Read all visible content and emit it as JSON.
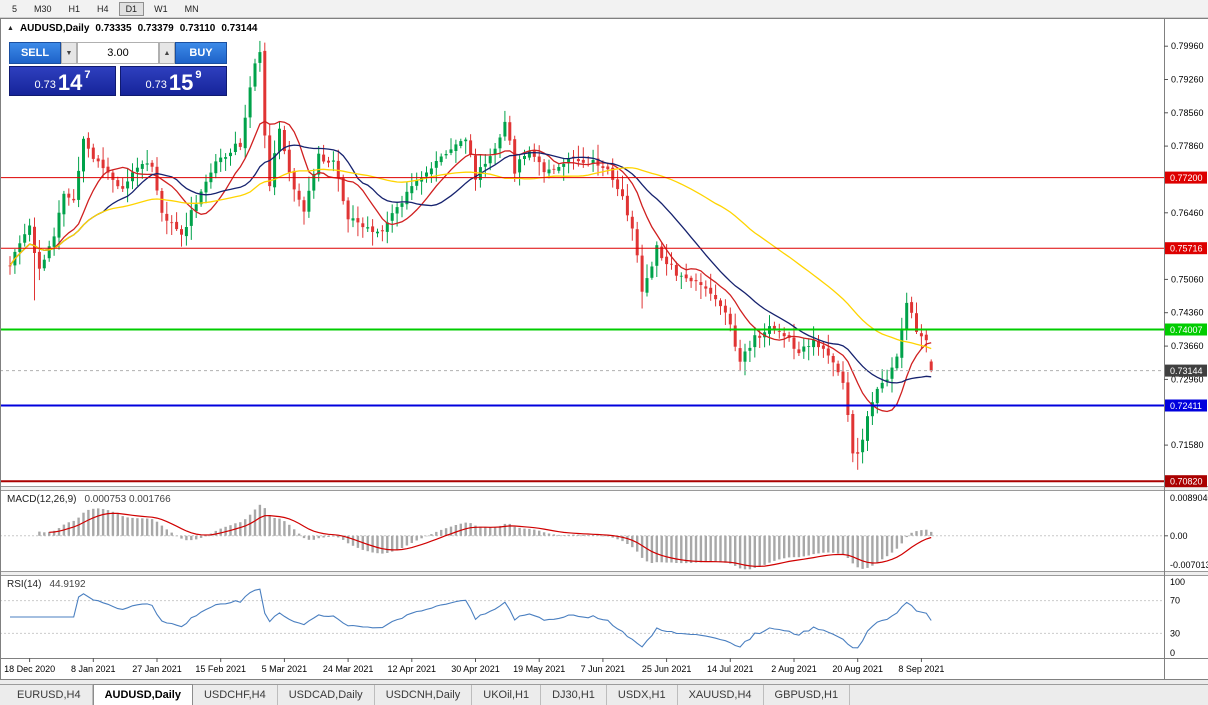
{
  "toolbar": {
    "timeframes": [
      "5",
      "M30",
      "H1",
      "H4",
      "D1",
      "W1",
      "MN"
    ],
    "active_timeframe": "D1"
  },
  "chart_header": {
    "expander_icon": "▲",
    "symbol_title": "AUDUSD,Daily",
    "open": "0.73335",
    "high": "0.73379",
    "low": "0.73110",
    "close": "0.73144"
  },
  "one_click_trading": {
    "sell_label": "SELL",
    "buy_label": "BUY",
    "volume": "3.00",
    "volume_down_icon": "▼",
    "volume_up_icon": "▲",
    "sell_price_full": "0.73147",
    "buy_price_full": "0.73159",
    "sell_price": {
      "prefix": "0.73",
      "big": "14",
      "sup": "7"
    },
    "buy_price": {
      "prefix": "0.73",
      "big": "15",
      "sup": "9"
    }
  },
  "indicators": {
    "macd": {
      "label": "MACD(12,26,9)",
      "values": "0.000753 0.001766",
      "axis_labels": [
        "0.00890400",
        "0.00",
        "-0.00701300"
      ]
    },
    "rsi": {
      "label": "RSI(14)",
      "value": "44.9192",
      "axis_labels": [
        "100",
        "70",
        "30",
        "0"
      ]
    }
  },
  "chart_data": {
    "type": "candlestick",
    "symbol": "AUDUSD",
    "timeframe": "Daily",
    "n_candles": 189,
    "seed": 11,
    "price_range": [
      0.7072,
      0.8051
    ],
    "y_ticks": [
      0.7996,
      0.7926,
      0.7856,
      0.7786,
      0.7646,
      0.7506,
      0.7436,
      0.7366,
      0.7296,
      0.7158
    ],
    "y_tick_labels": [
      "0.79960",
      "0.79260",
      "0.78560",
      "0.77860",
      "0.76460",
      "0.75060",
      "0.74360",
      "0.73660",
      "0.72960",
      "0.71580"
    ],
    "x_date_labels": [
      "18 Dec 2020",
      "8 Jan 2021",
      "27 Jan 2021",
      "15 Feb 2021",
      "5 Mar 2021",
      "24 Mar 2021",
      "12 Apr 2021",
      "30 Apr 2021",
      "19 May 2021",
      "7 Jun 2021",
      "25 Jun 2021",
      "14 Jul 2021",
      "2 Aug 2021",
      "20 Aug 2021",
      "8 Sep 2021"
    ],
    "first_tick_index": 4,
    "tick_spacing": 13,
    "up_color": "#00a24a",
    "down_color": "#e03434",
    "close_anchors": [
      [
        0,
        0.7535
      ],
      [
        4,
        0.7625
      ],
      [
        5,
        0.756
      ],
      [
        6,
        0.753
      ],
      [
        9,
        0.7592
      ],
      [
        11,
        0.7688
      ],
      [
        13,
        0.7668
      ],
      [
        15,
        0.7802
      ],
      [
        17,
        0.7762
      ],
      [
        20,
        0.7732
      ],
      [
        23,
        0.7692
      ],
      [
        26,
        0.7748
      ],
      [
        29,
        0.7738
      ],
      [
        31,
        0.7642
      ],
      [
        35,
        0.76
      ],
      [
        38,
        0.7672
      ],
      [
        41,
        0.7732
      ],
      [
        44,
        0.7772
      ],
      [
        47,
        0.7792
      ],
      [
        50,
        0.7962
      ],
      [
        51,
        0.799
      ],
      [
        52,
        0.78
      ],
      [
        53,
        0.771
      ],
      [
        55,
        0.7815
      ],
      [
        58,
        0.77
      ],
      [
        60,
        0.7655
      ],
      [
        63,
        0.7762
      ],
      [
        66,
        0.7757
      ],
      [
        69,
        0.7632
      ],
      [
        72,
        0.7617
      ],
      [
        75,
        0.7602
      ],
      [
        79,
        0.7657
      ],
      [
        83,
        0.7722
      ],
      [
        86,
        0.7737
      ],
      [
        90,
        0.7787
      ],
      [
        93,
        0.7802
      ],
      [
        95,
        0.7722
      ],
      [
        99,
        0.7782
      ],
      [
        101,
        0.7842
      ],
      [
        103,
        0.7737
      ],
      [
        106,
        0.7782
      ],
      [
        109,
        0.7737
      ],
      [
        112,
        0.7747
      ],
      [
        115,
        0.7762
      ],
      [
        118,
        0.7757
      ],
      [
        121,
        0.7747
      ],
      [
        124,
        0.7702
      ],
      [
        127,
        0.7617
      ],
      [
        129,
        0.7482
      ],
      [
        132,
        0.7572
      ],
      [
        136,
        0.7522
      ],
      [
        139,
        0.7502
      ],
      [
        142,
        0.7492
      ],
      [
        146,
        0.7442
      ],
      [
        149,
        0.7332
      ],
      [
        152,
        0.7387
      ],
      [
        155,
        0.7402
      ],
      [
        158,
        0.7392
      ],
      [
        161,
        0.7357
      ],
      [
        164,
        0.7382
      ],
      [
        167,
        0.7342
      ],
      [
        170,
        0.7292
      ],
      [
        172,
        0.7148
      ],
      [
        173,
        0.7132
      ],
      [
        176,
        0.7252
      ],
      [
        179,
        0.7302
      ],
      [
        181,
        0.7347
      ],
      [
        183,
        0.7452
      ],
      [
        185,
        0.7402
      ],
      [
        187,
        0.737
      ],
      [
        188,
        0.73144
      ]
    ],
    "candle_overrides": {
      "5": {
        "low": 0.7462
      },
      "51": {
        "high": 0.8007
      },
      "129": {
        "low": 0.7445
      },
      "173": {
        "low": 0.7106
      },
      "183": {
        "high": 0.7478
      },
      "188": {
        "open": 0.73335,
        "high": 0.73379,
        "low": 0.7311,
        "close": 0.73144
      }
    },
    "moving_averages": [
      {
        "period": 10,
        "color": "#d02020"
      },
      {
        "period": 20,
        "color": "#16226e"
      },
      {
        "period": 50,
        "color": "#ffd400"
      }
    ],
    "horizontal_levels": [
      {
        "price": 0.772,
        "label": "0.77200",
        "color": "#dd0000",
        "width": 1
      },
      {
        "price": 0.75716,
        "label": "0.75716",
        "color": "#dd0000",
        "width": 1
      },
      {
        "price": 0.74007,
        "label": "0.74007",
        "color": "#00cc00",
        "width": 2
      },
      {
        "price": 0.72411,
        "label": "0.72411",
        "color": "#0000dd",
        "width": 2
      },
      {
        "price": 0.7082,
        "label": "0.70820",
        "color": "#aa0000",
        "width": 2
      }
    ],
    "current_price": {
      "value": 0.73144,
      "label": "0.73144",
      "badge_color": "#404040"
    },
    "macd_panel": {
      "range": [
        -0.007013,
        0.008904
      ],
      "histogram_color": "#a8a8a8",
      "signal_color": "#d00000"
    },
    "rsi_panel": {
      "range": [
        0,
        100
      ],
      "line_color": "#4a7fc0",
      "levels": [
        70,
        30
      ],
      "current": 44.9192
    }
  },
  "tabs": {
    "items": [
      {
        "label": "EURUSD,H4",
        "active": false
      },
      {
        "label": "AUDUSD,Daily",
        "active": true
      },
      {
        "label": "USDCHF,H4",
        "active": false
      },
      {
        "label": "USDCAD,Daily",
        "active": false
      },
      {
        "label": "USDCNH,Daily",
        "active": false
      },
      {
        "label": "UKOil,H1",
        "active": false
      },
      {
        "label": "DJ30,H1",
        "active": false
      },
      {
        "label": "USDX,H1",
        "active": false
      },
      {
        "label": "XAUUSD,H4",
        "active": false
      },
      {
        "label": "GBPUSD,H1",
        "active": false
      }
    ]
  }
}
